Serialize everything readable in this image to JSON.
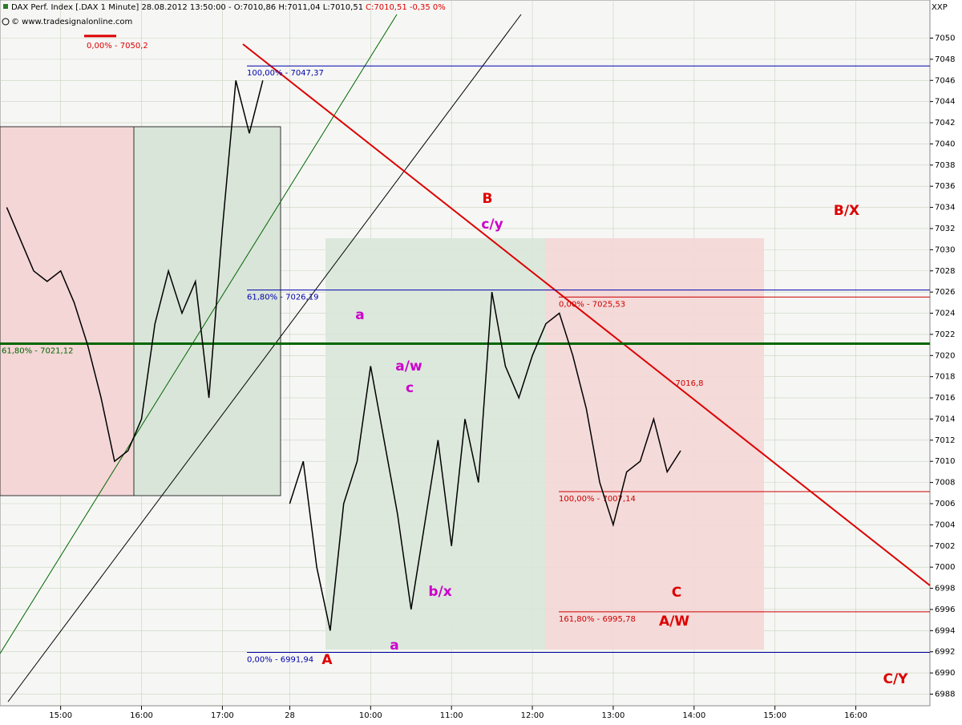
{
  "header": {
    "title": "DAX Perf. Index [.DAX  1 Minute] 28.08.2012 13:50:00 - O:7010,86 H:7011,04 L:7010,51",
    "close": "C:7010,51 -0,35 0%",
    "source": "© www.tradesignalonline.com",
    "corner": "XXP"
  },
  "chart_data": {
    "type": "line",
    "categories": [
      null,
      null,
      null,
      null,
      "15:00",
      null,
      null,
      null,
      null,
      null,
      "16:00",
      null,
      null,
      null,
      null,
      null,
      "17:00",
      null,
      null,
      null,
      null,
      "28",
      null,
      null,
      null,
      null,
      null,
      "10:00",
      null,
      null,
      null,
      null,
      null,
      "11:00",
      null,
      null,
      null,
      null,
      null,
      "12:00",
      null,
      null,
      null,
      null,
      null,
      "13:00",
      null,
      null,
      null,
      null,
      null,
      "14:00",
      null,
      null,
      null,
      null,
      null,
      "15:00",
      null,
      null,
      null,
      null,
      null,
      "16:00",
      null,
      null,
      null,
      null,
      null
    ],
    "series": [
      {
        "color": "#000000",
        "values": [
          7034,
          7031,
          7028,
          7027,
          7028,
          7025,
          7021,
          7016,
          7010,
          7011,
          7014,
          7023,
          7028,
          7024,
          7027,
          7016,
          7032,
          7046,
          7041,
          7046,
          null,
          7006,
          7010,
          7000,
          6994,
          7006,
          7010,
          7019,
          7012,
          7005,
          6996,
          7004,
          7012,
          7002,
          7014,
          7008,
          7026,
          7019,
          7016,
          7020,
          7023,
          7024,
          7020,
          7015,
          7008,
          7004,
          7009,
          7010,
          7014,
          7009,
          7011,
          null,
          null,
          null,
          null,
          null,
          null,
          null,
          null,
          null,
          null,
          null,
          null,
          null,
          null,
          null,
          null,
          null,
          null
        ]
      }
    ],
    "ylim": [
      6986.9,
      7053.6
    ],
    "yticks": [
      6988,
      6990,
      6992,
      6994,
      6996,
      6998,
      7000,
      7002,
      7004,
      7006,
      7008,
      7010,
      7012,
      7014,
      7016,
      7018,
      7020,
      7022,
      7024,
      7026,
      7028,
      7030,
      7032,
      7034,
      7036,
      7038,
      7040,
      7042,
      7044,
      7046,
      7048,
      7050
    ],
    "grid": true,
    "levels": [
      {
        "value": 7050.2,
        "label": "0,00% - 7050,2",
        "color": "#dd0000"
      },
      {
        "value": 7047.37,
        "label": "100,00% - 7047,37",
        "color": "#0000aa"
      },
      {
        "value": 7026.19,
        "label": "61,80% - 7026,19",
        "color": "#0000aa"
      },
      {
        "value": 6991.94,
        "label": "0,00% - 6991,94",
        "color": "#0000aa"
      },
      {
        "value": 7025.53,
        "label": "0,00% - 7025,53",
        "color": "#cc0000"
      },
      {
        "value": 7007.14,
        "label": "100,00% - 7007,14",
        "color": "#cc0000"
      },
      {
        "value": 6995.78,
        "label": "161,80% - 6995,78",
        "color": "#cc0000"
      },
      {
        "value": 7021.12,
        "label": "61,80% - 7021,12",
        "color": "#006600"
      }
    ],
    "annotations": [
      {
        "text": "B",
        "color": "#dd0000"
      },
      {
        "text": "c/y",
        "color": "#cc00cc"
      },
      {
        "text": "B/X",
        "color": "#dd0000"
      },
      {
        "text": "a",
        "color": "#cc00cc"
      },
      {
        "text": "a/w",
        "color": "#cc00cc"
      },
      {
        "text": "c",
        "color": "#cc00cc"
      },
      {
        "text": "b/x",
        "color": "#cc00cc"
      },
      {
        "text": "a",
        "color": "#cc00cc"
      },
      {
        "text": "A",
        "color": "#dd0000"
      },
      {
        "text": "C",
        "color": "#dd0000"
      },
      {
        "text": "A/W",
        "color": "#dd0000"
      },
      {
        "text": "C/Y",
        "color": "#dd0000"
      },
      {
        "text": "7016,8",
        "color": "#cc0000"
      }
    ]
  }
}
